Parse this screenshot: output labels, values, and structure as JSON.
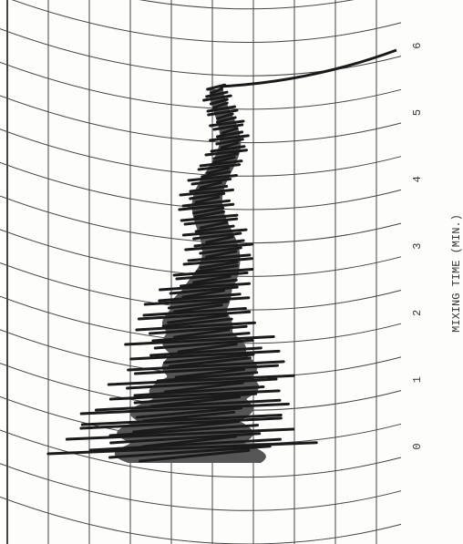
{
  "axis_label": "MIXING TIME (MIN.)",
  "ticks": [
    "0",
    "1",
    "2",
    "3",
    "4",
    "5",
    "6"
  ]
}
